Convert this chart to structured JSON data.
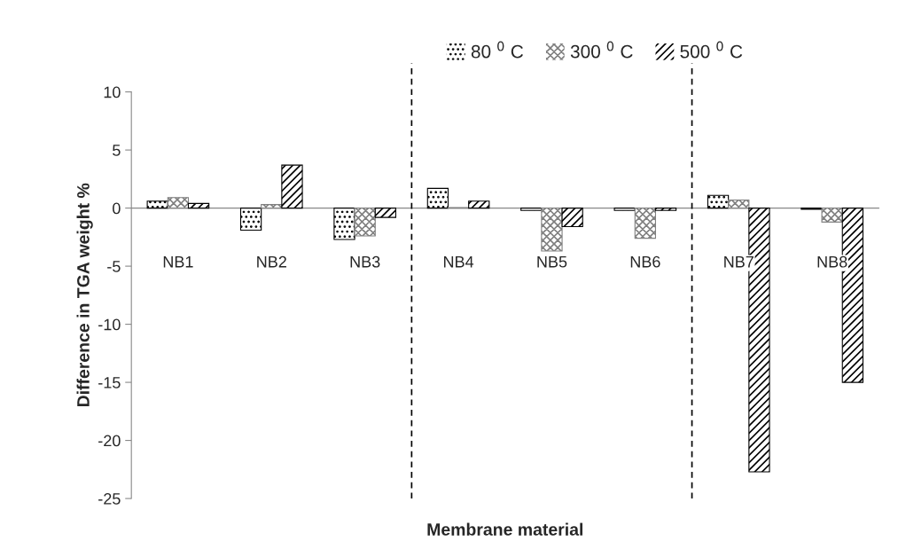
{
  "chart_data": {
    "type": "bar",
    "xlabel": "Membrane material",
    "ylabel": "Difference in TGA weight %",
    "categories": [
      "NB1",
      "NB2",
      "NB3",
      "NB4",
      "NB5",
      "NB6",
      "NB7",
      "NB8"
    ],
    "series": [
      {
        "name": "80 $^{0}$ C",
        "color": "#000000",
        "values": [
          0.6,
          -1.9,
          -2.7,
          1.7,
          -0.2,
          -0.2,
          1.1,
          -0.1
        ]
      },
      {
        "name": "300 $^{0}$ C",
        "color": "#808080",
        "values": [
          0.9,
          0.3,
          -2.4,
          0.05,
          -3.7,
          -2.6,
          0.7,
          -1.2
        ]
      },
      {
        "name": "500 $^{0}$ C",
        "color": "#000000",
        "values": [
          0.4,
          3.7,
          -0.8,
          0.6,
          -1.6,
          -0.2,
          -22.7,
          -15.0
        ]
      }
    ],
    "ylim": [
      -25,
      10
    ],
    "yticks": [
      -25,
      -20,
      -15,
      -10,
      -5,
      0,
      5,
      10
    ],
    "legend": "top",
    "grid": false
  }
}
